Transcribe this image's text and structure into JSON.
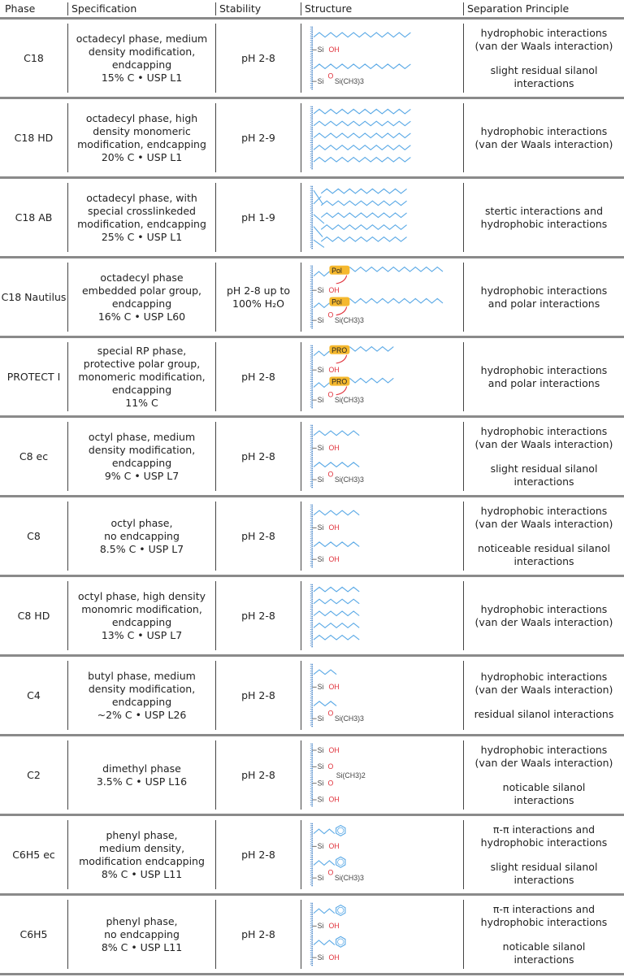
{
  "headers": [
    "Phase",
    "Specification",
    "Stability",
    "Structure",
    "Separation Principle"
  ],
  "labels": {
    "si": "Si",
    "oh": "OH",
    "o": "O",
    "endcap": "Si(CH3)3",
    "dimethyl": "Si(CH3)2"
  },
  "colors": {
    "chain": "#5aa9e6",
    "oxygen": "#e0303a",
    "label_bg": "#f5b82e",
    "text": "#444444",
    "rule": "#8a8a8a"
  },
  "rows": [
    {
      "phase": "C18",
      "spec": [
        "octadecyl phase, medium",
        "density modification,",
        "endcapping",
        "15% C • USP L1"
      ],
      "stability": "pH 2-8",
      "structure": "ec-18",
      "principle": [
        "hydrophobic interactions",
        "(van der Waals interaction)"
      ],
      "principle2": [
        "slight residual silanol",
        "interactions"
      ]
    },
    {
      "phase": "C18 HD",
      "spec": [
        "octadecyl phase, high",
        "density monomeric",
        "modification, endcapping",
        "20% C • USP L1"
      ],
      "stability": "pH 2-9",
      "structure": "hd-18",
      "principle": [
        "hydrophobic interactions",
        "(van der Waals interaction)"
      ],
      "principle2": []
    },
    {
      "phase": "C18 AB",
      "spec": [
        "octadecyl phase, with",
        "special crosslinkeded",
        "modification, endcapping",
        "25% C • USP L1"
      ],
      "stability": "pH 1-9",
      "structure": "ab-18",
      "principle": [
        "stertic interactions and",
        "hydrophobic interactions"
      ],
      "principle2": []
    },
    {
      "phase": "C18 Nautilus",
      "spec": [
        "octadecyl phase",
        "embedded polar group,",
        "endcapping",
        "16% C • USP L60"
      ],
      "stability": "pH 2-8 up to 100% H₂O",
      "structure": "pol",
      "tag": "Pol",
      "principle": [
        "hydrophobic interactions",
        "and polar interactions"
      ],
      "principle2": []
    },
    {
      "phase": "PROTECT I",
      "spec": [
        "special RP phase,",
        "protective polar group,",
        "monomeric modification,",
        "endcapping",
        "11% C"
      ],
      "stability": "pH 2-8",
      "structure": "pro",
      "tag": "PRO",
      "principle": [
        "hydrophobic interactions",
        "and polar interactions"
      ],
      "principle2": []
    },
    {
      "phase": "C8 ec",
      "spec": [
        "octyl phase, medium",
        "density modification,",
        "endcapping",
        "9% C • USP L7"
      ],
      "stability": "pH 2-8",
      "structure": "ec-8",
      "principle": [
        "hydrophobic interactions",
        "(van der Waals interaction)"
      ],
      "principle2": [
        "slight residual silanol",
        "interactions"
      ]
    },
    {
      "phase": "C8",
      "spec": [
        "octyl phase,",
        "no endcapping",
        "8.5% C • USP L7"
      ],
      "stability": "pH 2-8",
      "structure": "ne-8",
      "principle": [
        "hydrophobic interactions",
        "(van der Waals interaction)"
      ],
      "principle2": [
        "noticeable residual silanol",
        "interactions"
      ]
    },
    {
      "phase": "C8 HD",
      "spec": [
        "octyl phase, high density",
        "monomric modification,",
        "endcapping",
        "13% C • USP L7"
      ],
      "stability": "pH 2-8",
      "structure": "hd-8",
      "principle": [
        "hydrophobic interactions",
        "(van der Waals interaction)"
      ],
      "principle2": []
    },
    {
      "phase": "C4",
      "spec": [
        "butyl phase, medium",
        "density modification,",
        "endcapping",
        "~2% C • USP L26"
      ],
      "stability": "pH 2-8",
      "structure": "ec-4",
      "principle": [
        "hydrophobic interactions",
        "(van der Waals interaction)"
      ],
      "principle2": [
        "residual silanol interactions"
      ]
    },
    {
      "phase": "C2",
      "spec": [
        "dimethyl phase",
        "3.5% C • USP L16"
      ],
      "stability": "pH 2-8",
      "structure": "c2",
      "principle": [
        "hydrophobic interactions",
        "(van der Waals interaction)"
      ],
      "principle2": [
        "noticable silanol",
        "interactions"
      ]
    },
    {
      "phase": "C6H5 ec",
      "spec": [
        "phenyl phase,",
        "medium density,",
        "modification endcapping",
        "8% C • USP L11"
      ],
      "stability": "pH 2-8",
      "structure": "ph-ec",
      "principle": [
        "π-π interactions and",
        "hydrophobic interactions"
      ],
      "principle2": [
        "slight residual silanol",
        "interactions"
      ]
    },
    {
      "phase": "C6H5",
      "spec": [
        "phenyl phase,",
        "no endcapping",
        "8% C • USP L11"
      ],
      "stability": "pH 2-8",
      "structure": "ph-ne",
      "principle": [
        "π-π interactions and",
        "hydrophobic interactions"
      ],
      "principle2": [
        "noticable silanol",
        "interactions"
      ]
    }
  ]
}
